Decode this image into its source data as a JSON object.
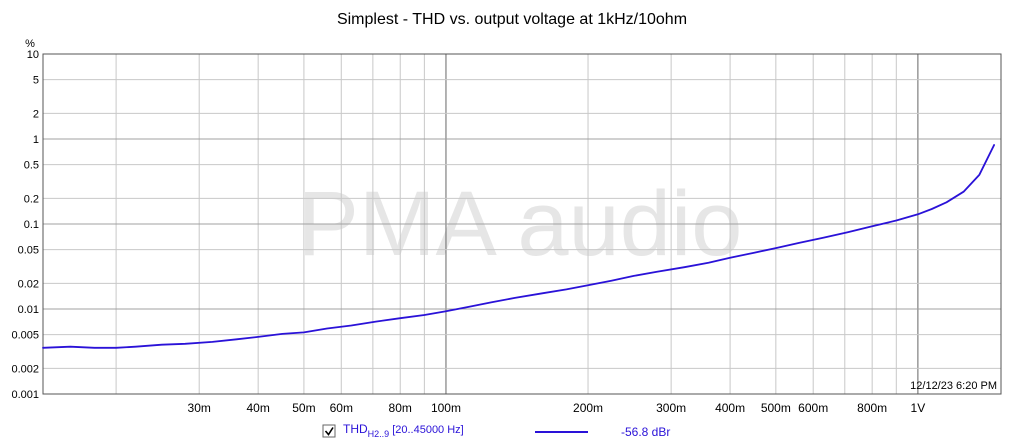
{
  "chart_data": {
    "type": "line",
    "title": "Simplest - THD vs. output voltage at 1kHz/10ohm",
    "ylabel": "%",
    "xlabel": "",
    "x_scale": "log",
    "y_scale": "log",
    "xlim": [
      0.014,
      1.5
    ],
    "ylim": [
      0.001,
      10
    ],
    "grid": true,
    "watermark": "PMA audio",
    "timestamp": "12/12/23 6:20 PM",
    "x_ticks": [
      {
        "value": 0.03,
        "label": "30m"
      },
      {
        "value": 0.04,
        "label": "40m"
      },
      {
        "value": 0.05,
        "label": "50m"
      },
      {
        "value": 0.06,
        "label": "60m"
      },
      {
        "value": 0.08,
        "label": "80m"
      },
      {
        "value": 0.1,
        "label": "100m"
      },
      {
        "value": 0.2,
        "label": "200m"
      },
      {
        "value": 0.3,
        "label": "300m"
      },
      {
        "value": 0.4,
        "label": "400m"
      },
      {
        "value": 0.5,
        "label": "500m"
      },
      {
        "value": 0.6,
        "label": "600m"
      },
      {
        "value": 0.8,
        "label": "800m"
      },
      {
        "value": 1.0,
        "label": "1V"
      }
    ],
    "y_ticks": [
      {
        "value": 10,
        "label": "10"
      },
      {
        "value": 5,
        "label": "5"
      },
      {
        "value": 2,
        "label": "2"
      },
      {
        "value": 1,
        "label": "1"
      },
      {
        "value": 0.5,
        "label": "0.5"
      },
      {
        "value": 0.2,
        "label": "0.2"
      },
      {
        "value": 0.1,
        "label": "0.1"
      },
      {
        "value": 0.05,
        "label": "0.05"
      },
      {
        "value": 0.02,
        "label": "0.02"
      },
      {
        "value": 0.01,
        "label": "0.01"
      },
      {
        "value": 0.005,
        "label": "0.005"
      },
      {
        "value": 0.002,
        "label": "0.002"
      },
      {
        "value": 0.001,
        "label": "0.001"
      }
    ],
    "series": [
      {
        "name": "THD H2..9 [20..45000 Hz]",
        "color": "#2a12d8",
        "x": [
          0.014,
          0.016,
          0.018,
          0.02,
          0.022,
          0.025,
          0.028,
          0.032,
          0.036,
          0.04,
          0.045,
          0.05,
          0.056,
          0.063,
          0.071,
          0.08,
          0.09,
          0.1,
          0.112,
          0.125,
          0.14,
          0.16,
          0.18,
          0.2,
          0.224,
          0.25,
          0.28,
          0.32,
          0.36,
          0.4,
          0.45,
          0.5,
          0.56,
          0.63,
          0.71,
          0.8,
          0.9,
          1.0,
          1.07,
          1.15,
          1.25,
          1.35,
          1.45
        ],
        "y": [
          0.0035,
          0.0036,
          0.0035,
          0.0035,
          0.0036,
          0.0038,
          0.0039,
          0.0041,
          0.0044,
          0.0047,
          0.0051,
          0.0053,
          0.0059,
          0.0064,
          0.0071,
          0.0078,
          0.0085,
          0.0094,
          0.0106,
          0.012,
          0.0135,
          0.0153,
          0.017,
          0.019,
          0.0215,
          0.0245,
          0.0275,
          0.031,
          0.035,
          0.04,
          0.046,
          0.052,
          0.06,
          0.069,
          0.08,
          0.094,
          0.11,
          0.13,
          0.15,
          0.18,
          0.24,
          0.38,
          0.85
        ]
      }
    ]
  },
  "legend": {
    "checkbox_checked": true,
    "label_main": "THD",
    "label_sub": "H2..9",
    "label_range": "[20..45000 Hz]",
    "value": "-56.8 dBr"
  }
}
